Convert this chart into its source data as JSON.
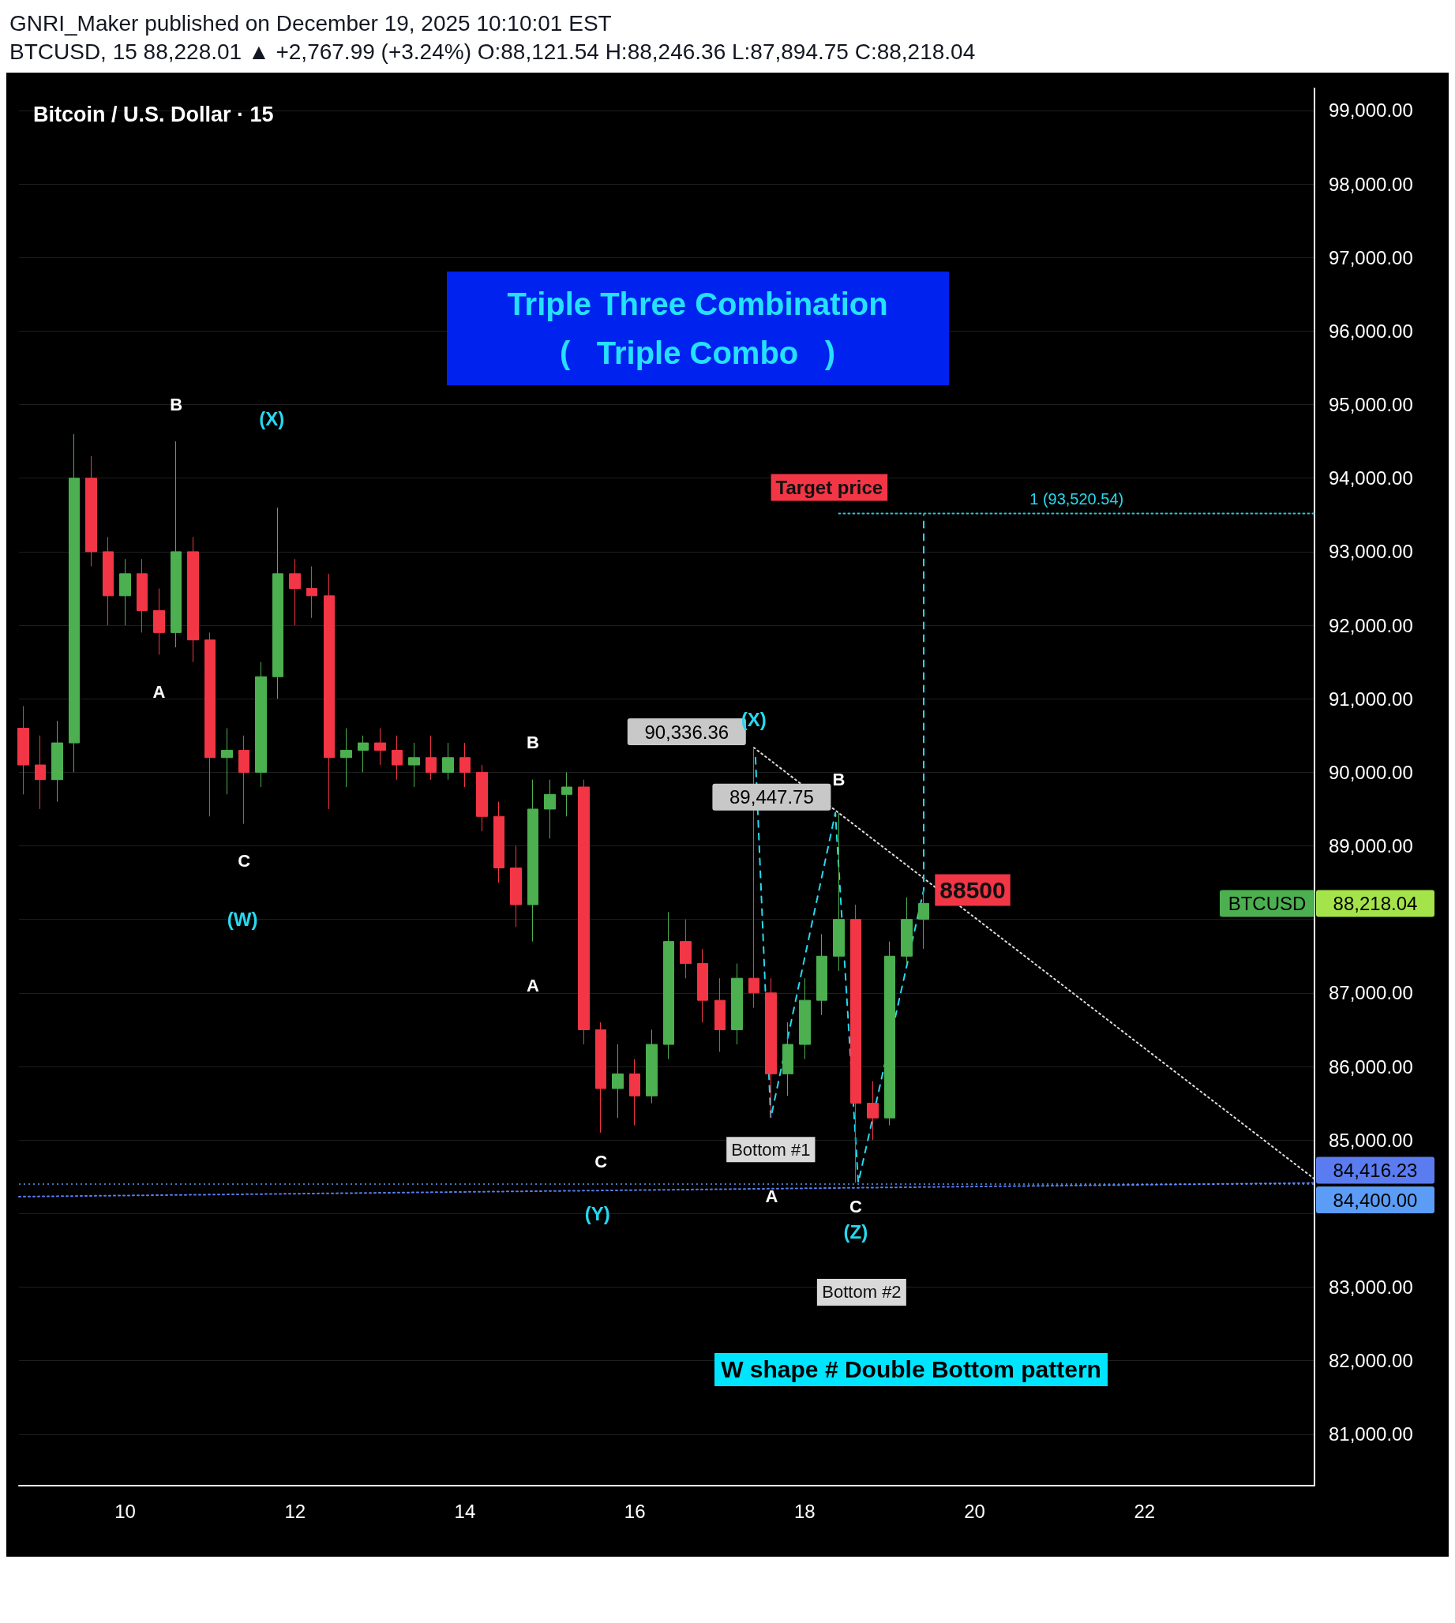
{
  "chart_data": {
    "type": "candlestick",
    "title": "GNRI_Maker published on December 19, 2025 10:10:01 EST",
    "subtitle": "BTCUSD, 15 88,228.01 ▲ +2,767.99 (+3.24%) O:88,121.54 H:88,246.36 L:87,894.75 C:88,218.04",
    "series": [
      {
        "name": "BTCUSD",
        "x": [
          8.8,
          9.0,
          9.2,
          9.4,
          9.6,
          9.8,
          10.0,
          10.2,
          10.4,
          10.6,
          10.8,
          11.0,
          11.2,
          11.4,
          11.6,
          11.8,
          12.0,
          12.2,
          12.4,
          12.6,
          12.8,
          13.0,
          13.2,
          13.4,
          13.6,
          13.8,
          14.0,
          14.2,
          14.4,
          14.6,
          14.8,
          15.0,
          15.2,
          15.4,
          15.6,
          15.8,
          16.0,
          16.2,
          16.4,
          16.6,
          16.8,
          17.0,
          17.2,
          17.4,
          17.6,
          17.8,
          18.0,
          18.2,
          18.4,
          18.6,
          18.8,
          19.0,
          19.2,
          19.4
        ],
        "ohlc": [
          [
            90600,
            90900,
            89700,
            90100
          ],
          [
            90100,
            90500,
            89500,
            89900
          ],
          [
            89900,
            90700,
            89600,
            90400
          ],
          [
            90400,
            94600,
            90000,
            94000
          ],
          [
            94000,
            94300,
            92800,
            93000
          ],
          [
            93000,
            93200,
            92000,
            92400
          ],
          [
            92400,
            92900,
            92000,
            92700
          ],
          [
            92700,
            92900,
            91900,
            92200
          ],
          [
            92200,
            92500,
            91600,
            91900
          ],
          [
            91900,
            94500,
            91700,
            93000
          ],
          [
            93000,
            93200,
            91500,
            91800
          ],
          [
            91800,
            91900,
            89400,
            90200
          ],
          [
            90200,
            90600,
            89700,
            90300
          ],
          [
            90300,
            90500,
            89300,
            90000
          ],
          [
            90000,
            91500,
            89800,
            91300
          ],
          [
            91300,
            93600,
            91000,
            92700
          ],
          [
            92700,
            92900,
            92000,
            92500
          ],
          [
            92500,
            92800,
            92100,
            92400
          ],
          [
            92400,
            92700,
            89500,
            90200
          ],
          [
            90200,
            90600,
            89800,
            90300
          ],
          [
            90300,
            90500,
            90000,
            90400
          ],
          [
            90400,
            90600,
            90100,
            90300
          ],
          [
            90300,
            90500,
            89900,
            90100
          ],
          [
            90100,
            90400,
            89800,
            90200
          ],
          [
            90200,
            90500,
            89900,
            90000
          ],
          [
            90000,
            90400,
            89900,
            90200
          ],
          [
            90200,
            90400,
            89800,
            90000
          ],
          [
            90000,
            90100,
            89200,
            89400
          ],
          [
            89400,
            89600,
            88500,
            88700
          ],
          [
            88700,
            89000,
            87900,
            88200
          ],
          [
            88200,
            89900,
            87700,
            89500
          ],
          [
            89500,
            89900,
            89100,
            89700
          ],
          [
            89700,
            90000,
            89400,
            89800
          ],
          [
            89800,
            89900,
            86300,
            86500
          ],
          [
            86500,
            86600,
            85100,
            85700
          ],
          [
            85700,
            86300,
            85300,
            85900
          ],
          [
            85900,
            86100,
            85200,
            85600
          ],
          [
            85600,
            86500,
            85500,
            86300
          ],
          [
            86300,
            88100,
            86100,
            87700
          ],
          [
            87700,
            88000,
            87200,
            87400
          ],
          [
            87400,
            87600,
            86600,
            86900
          ],
          [
            86900,
            87200,
            86200,
            86500
          ],
          [
            86500,
            87400,
            86300,
            87200
          ],
          [
            87200,
            90336,
            86800,
            87000
          ],
          [
            87000,
            87200,
            85300,
            85900
          ],
          [
            85900,
            86600,
            85600,
            86300
          ],
          [
            86300,
            87200,
            86100,
            86900
          ],
          [
            86900,
            87800,
            86700,
            87500
          ],
          [
            87500,
            89448,
            87300,
            88000
          ],
          [
            88000,
            88200,
            84420,
            85500
          ],
          [
            85500,
            85800,
            85000,
            85300
          ],
          [
            85300,
            87700,
            85200,
            87500
          ],
          [
            87500,
            88300,
            87400,
            88000
          ],
          [
            88000,
            88400,
            87600,
            88218
          ]
        ],
        "colors": [
          "#f23645",
          "#f23645",
          "#4caf50",
          "#4caf50",
          "#f23645",
          "#f23645",
          "#4caf50",
          "#f23645",
          "#f23645",
          "#4caf50",
          "#f23645",
          "#f23645",
          "#4caf50",
          "#f23645",
          "#4caf50",
          "#4caf50",
          "#f23645",
          "#f23645",
          "#f23645",
          "#4caf50",
          "#4caf50",
          "#f23645",
          "#f23645",
          "#4caf50",
          "#f23645",
          "#4caf50",
          "#f23645",
          "#f23645",
          "#f23645",
          "#f23645",
          "#4caf50",
          "#4caf50",
          "#4caf50",
          "#f23645",
          "#f23645",
          "#4caf50",
          "#f23645",
          "#4caf50",
          "#4caf50",
          "#f23645",
          "#f23645",
          "#f23645",
          "#4caf50",
          "#f23645",
          "#f23645",
          "#4caf50",
          "#4caf50",
          "#4caf50",
          "#4caf50",
          "#f23645",
          "#f23645",
          "#4caf50",
          "#4caf50",
          "#4caf50"
        ],
        "value_labels": [
          null,
          null,
          null,
          null,
          null,
          null,
          null,
          null,
          null,
          null,
          null,
          null,
          null,
          null,
          null,
          null,
          null,
          null,
          null,
          null,
          null,
          null,
          null,
          null,
          null,
          null,
          null,
          null,
          null,
          null,
          null,
          null,
          null,
          null,
          null,
          null,
          null,
          null,
          null,
          null,
          null,
          null,
          null,
          null,
          null,
          null,
          null,
          null,
          null,
          null,
          null,
          null,
          null,
          "88,218.04"
        ]
      },
      {
        "type": "line",
        "color": "#dddddd",
        "line_style": "dotted",
        "x": [
          17.4,
          18.4,
          24.0
        ],
        "values": [
          90336.36,
          89447.75,
          84470
        ],
        "value_labels": [
          "90,336.36",
          "89,447.75",
          null
        ]
      },
      {
        "type": "line",
        "color": "#5b7cf0",
        "line_style": "dotted",
        "x": [
          8.75,
          24.0
        ],
        "values": [
          84230,
          84416.23
        ],
        "value_labels": [
          null,
          "84,416.23"
        ]
      },
      {
        "type": "line",
        "color": "#26c6da",
        "line_style": "dotted",
        "x": [
          18.4,
          24.0
        ],
        "values": [
          93520.54,
          93520.54
        ]
      },
      {
        "type": "line",
        "color": "#26d9f0",
        "line_style": "dashed",
        "x": [
          17.42,
          17.6,
          18.36,
          18.63,
          19.4,
          19.4
        ],
        "values": [
          90200,
          85300,
          89448,
          84420,
          88400,
          93500
        ]
      }
    ],
    "ref_lines": [
      {
        "axis": "y",
        "value": 84400,
        "label": "84,400.00",
        "color": "#5b9cf6",
        "line_style": "dotted"
      }
    ],
    "marker": "none",
    "xlim": [
      8.75,
      24.0
    ],
    "xticks": [
      10,
      12,
      14,
      16,
      18,
      20,
      22
    ],
    "ylim": [
      80300,
      99300
    ],
    "yticks": [
      {
        "value": 81000,
        "label": "81,000.00"
      },
      {
        "value": 82000,
        "label": "82,000.00"
      },
      {
        "value": 83000,
        "label": "83,000.00"
      },
      {
        "value": 84000,
        "label": null
      },
      {
        "value": 85000,
        "label": "85,000.00"
      },
      {
        "value": 86000,
        "label": "86,000.00"
      },
      {
        "value": 87000,
        "label": "87,000.00"
      },
      {
        "value": 88000,
        "label": null
      },
      {
        "value": 89000,
        "label": "89,000.00"
      },
      {
        "value": 90000,
        "label": "90,000.00"
      },
      {
        "value": 91000,
        "label": "91,000.00"
      },
      {
        "value": 92000,
        "label": "92,000.00"
      },
      {
        "value": 93000,
        "label": "93,000.00"
      },
      {
        "value": 94000,
        "label": "94,000.00"
      },
      {
        "value": 95000,
        "label": "95,000.00"
      },
      {
        "value": 96000,
        "label": "96,000.00"
      },
      {
        "value": 97000,
        "label": "97,000.00"
      },
      {
        "value": 98000,
        "label": "98,000.00"
      },
      {
        "value": 99000,
        "label": "99,000.00"
      }
    ],
    "grid": "y",
    "annotations": [
      "Bitcoin / U.S. Dollar · 15",
      "Triple Three Combination",
      "(   Triple Combo   )",
      "W shape # Double Bottom pattern",
      "(X)",
      "(W)",
      "(Y)",
      "A",
      "Bottom #2",
      {
        "text": "B",
        "x": 10.6,
        "y": 94500
      },
      {
        "text": "A",
        "x": 10.4,
        "y": 91600
      },
      {
        "text": "C",
        "x": 11.4,
        "y": 89300
      },
      {
        "text": "B",
        "x": 14.8,
        "y": 89900
      },
      {
        "text": "A",
        "x": 14.8,
        "y": 87700
      },
      {
        "text": "C",
        "x": 15.6,
        "y": 85100
      },
      {
        "text": "(X)",
        "x": 17.4,
        "y": 90336
      },
      {
        "text": "B",
        "x": 18.4,
        "y": 89448
      },
      {
        "text": "C",
        "x": 18.6,
        "y": 84420
      },
      {
        "text": "(Z)",
        "x": 18.6,
        "y": 84420
      },
      {
        "text": "Bottom #1",
        "x": 17.6,
        "y": 85300
      },
      {
        "text": "Target price",
        "x": 18.4,
        "y": 93520.54
      },
      {
        "text": "88500",
        "x": 19.4,
        "y": 88400
      },
      {
        "text": "1 (93,520.54)",
        "x": 21.2,
        "y": 93520.54
      }
    ]
  }
}
